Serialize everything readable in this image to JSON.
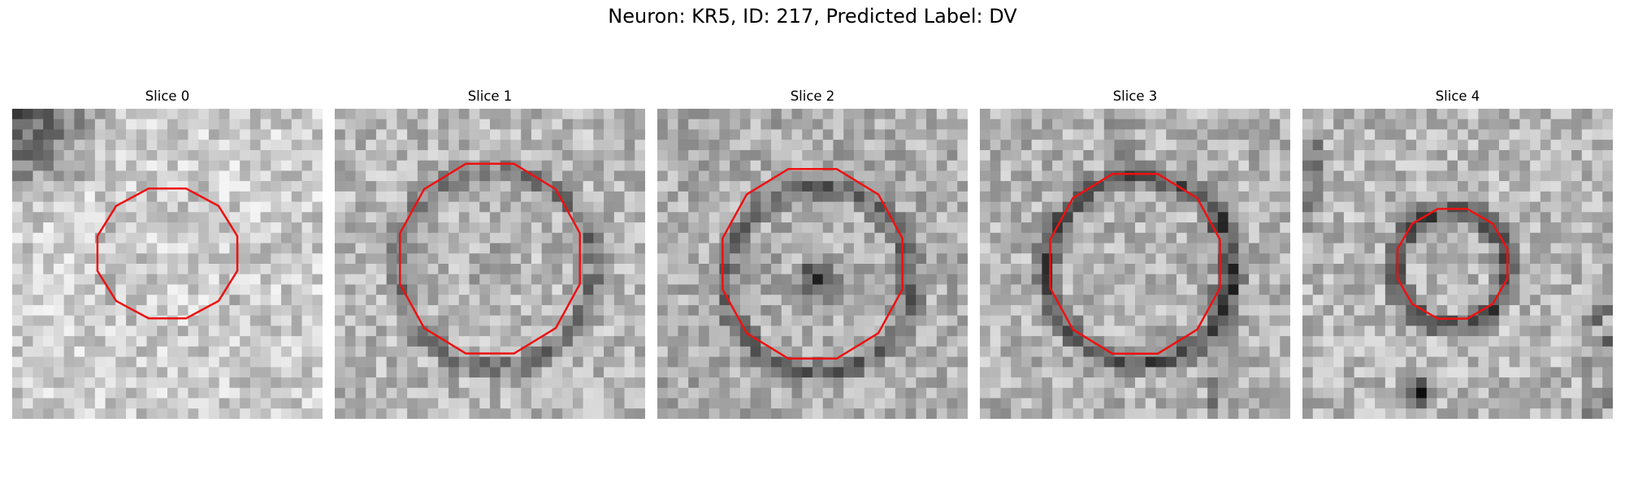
{
  "figure": {
    "title": "Neuron: KR5, ID: 217, Predicted Label: DV",
    "contour_color": "#ee1111"
  },
  "slices": [
    {
      "title": "Slice 0"
    },
    {
      "title": "Slice 1"
    },
    {
      "title": "Slice 2"
    },
    {
      "title": "Slice 3"
    },
    {
      "title": "Slice 4"
    }
  ]
}
